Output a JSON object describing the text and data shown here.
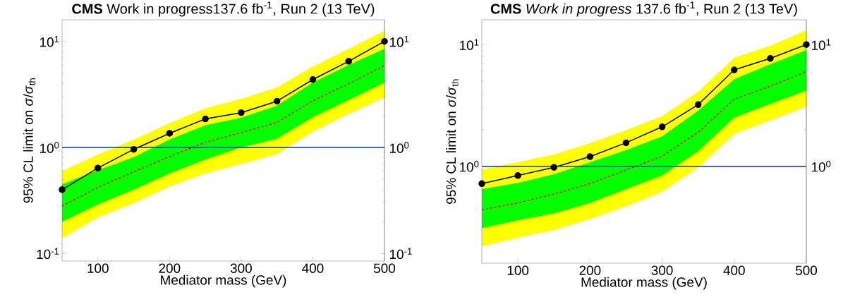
{
  "chart_data": [
    {
      "type": "line",
      "title": "**CMS** Work in progress137.6 fb$^{-1}$, Run 2 (13 TeV)",
      "xlabel": "Mediator mass (GeV)",
      "ylabel": "95% CL limit on *σ*/*σ*$_{th}$",
      "x": [
        50,
        100,
        150,
        200,
        250,
        300,
        350,
        400,
        450,
        500
      ],
      "series": [
        {
          "type": "line",
          "color": "#ffff00",
          "values": [
            null,
            null,
            null,
            null,
            null,
            null,
            null,
            null,
            null,
            null
          ],
          "lower": [
            0.14,
            0.22,
            0.3,
            0.43,
            0.57,
            0.7,
            0.87,
            1.41,
            2.08,
            2.97
          ],
          "upper": [
            0.6,
            0.86,
            1.19,
            1.7,
            2.34,
            2.88,
            3.68,
            5.8,
            8.5,
            12.6
          ]
        },
        {
          "type": "line",
          "color": "#00ff00",
          "values": [
            null,
            null,
            null,
            null,
            null,
            null,
            null,
            null,
            null,
            null
          ],
          "lower": [
            0.2,
            0.29,
            0.4,
            0.57,
            0.77,
            1.0,
            1.21,
            1.93,
            2.8,
            4.1
          ],
          "upper": [
            0.45,
            0.61,
            0.81,
            1.19,
            1.62,
            1.91,
            2.48,
            4.1,
            6.0,
            8.5
          ]
        },
        {
          "type": "line",
          "color": "#ff0000",
          "line_style": "dashed",
          "marker": "none",
          "values": [
            0.28,
            0.42,
            0.59,
            0.82,
            1.12,
            1.38,
            1.72,
            2.76,
            3.98,
            5.9
          ]
        },
        {
          "type": "line",
          "color": "#000000",
          "line_style": "solid",
          "marker": "circle",
          "values": [
            0.4,
            0.64,
            0.96,
            1.36,
            1.86,
            2.13,
            2.73,
            4.37,
            6.5,
            10.0
          ]
        }
      ],
      "ref_lines": [
        {
          "axis": "y",
          "value": 1,
          "color": "#0033cc"
        }
      ],
      "log": "y",
      "grid": false,
      "xlim": [
        50,
        500
      ],
      "xticks": [
        100,
        200,
        300,
        400,
        500
      ],
      "ylim": [
        0.085,
        16
      ],
      "yticks": [
        {
          "value": 0.1,
          "label": "10$^{-1}$"
        },
        {
          "value": 1,
          "label": "10$^{0}$"
        },
        {
          "value": 10,
          "label": "10$^{1}$"
        }
      ]
    },
    {
      "type": "line",
      "title": "**CMS** *Work in progress* 137.6 fb$^{-1}$, Run 2 (13 TeV)",
      "xlabel": "Mediator mass (GeV)",
      "ylabel": "95% CL limit on *σ*/*σ*$_{th}$",
      "x": [
        50,
        100,
        150,
        200,
        250,
        300,
        350,
        400,
        450,
        500
      ],
      "series": [
        {
          "type": "line",
          "color": "#ffff00",
          "values": [
            null,
            null,
            null,
            null,
            null,
            null,
            null,
            null,
            null,
            null
          ],
          "lower": [
            0.22,
            0.26,
            0.3,
            0.37,
            0.47,
            0.62,
            0.98,
            1.85,
            2.39,
            3.1
          ],
          "upper": [
            0.94,
            1.08,
            1.25,
            1.55,
            1.98,
            2.59,
            4.1,
            7.8,
            9.8,
            13.1
          ]
        },
        {
          "type": "line",
          "color": "#00ff00",
          "values": [
            null,
            null,
            null,
            null,
            null,
            null,
            null,
            null,
            null,
            null
          ],
          "lower": [
            0.31,
            0.36,
            0.41,
            0.5,
            0.65,
            0.84,
            1.33,
            2.52,
            3.26,
            4.2
          ],
          "upper": [
            0.65,
            0.73,
            0.86,
            1.08,
            1.36,
            1.76,
            2.87,
            5.2,
            6.9,
            9.0
          ]
        },
        {
          "type": "line",
          "color": "#ff0000",
          "line_style": "dashed",
          "marker": "none",
          "values": [
            0.44,
            0.5,
            0.59,
            0.72,
            0.93,
            1.21,
            1.9,
            3.56,
            4.55,
            6.0
          ]
        },
        {
          "type": "line",
          "color": "#000000",
          "line_style": "solid",
          "marker": "circle",
          "values": [
            0.72,
            0.84,
            0.98,
            1.2,
            1.56,
            2.11,
            3.21,
            6.2,
            7.7,
            10.0
          ]
        }
      ],
      "ref_lines": [
        {
          "axis": "y",
          "value": 1,
          "color": "#0033cc"
        }
      ],
      "log": "y",
      "grid": false,
      "xlim": [
        50,
        500
      ],
      "xticks": [
        100,
        200,
        300,
        400,
        500
      ],
      "ylim": [
        0.16,
        16
      ],
      "yticks": [
        {
          "value": 1,
          "label": "10$^{0}$"
        },
        {
          "value": 10,
          "label": "10$^{1}$"
        }
      ]
    }
  ]
}
